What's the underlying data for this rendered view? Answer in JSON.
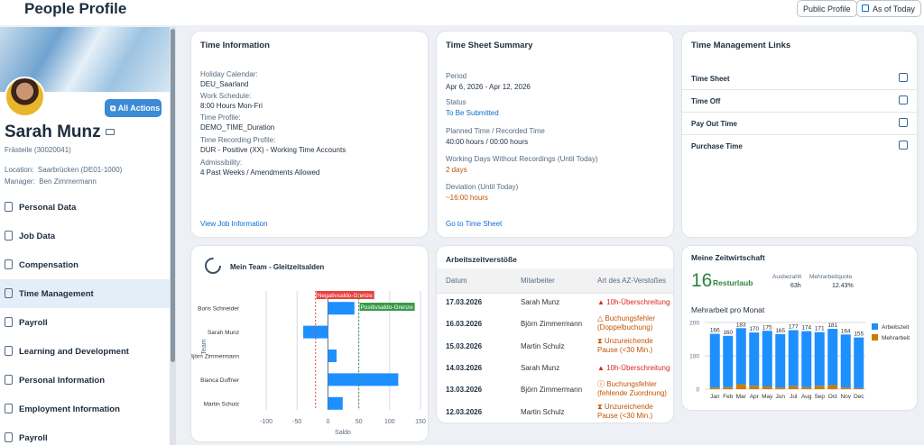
{
  "header": {
    "title": "People Profile",
    "public_profile": "Public Profile",
    "as_of_today": "As of Today"
  },
  "profile": {
    "name": "Sarah Munz",
    "position": "Frästeile (30020041)",
    "location_label": "Location:",
    "location": "Saarbrücken (DE01-1000)",
    "manager_label": "Manager:",
    "manager": "Ben Zimmermann",
    "all_actions": "All Actions"
  },
  "nav": [
    {
      "label": "Personal Data"
    },
    {
      "label": "Job Data"
    },
    {
      "label": "Compensation"
    },
    {
      "label": "Time Management",
      "selected": true
    },
    {
      "label": "Payroll"
    },
    {
      "label": "Learning and Development"
    },
    {
      "label": "Personal Information"
    },
    {
      "label": "Employment Information"
    },
    {
      "label": "Payroll"
    }
  ],
  "time_info": {
    "title": "Time Information",
    "fields": [
      {
        "label": "Holiday Calendar:",
        "value": "DEU_Saarland"
      },
      {
        "label": "Work Schedule:",
        "value": "8:00 Hours Mon-Fri"
      },
      {
        "label": "Time Profile:",
        "value": "DEMO_TIME_Duration"
      },
      {
        "label": "Time Recording Profile:",
        "value": "DUR - Positive (XX) - Working Time Accounts"
      },
      {
        "label": "Admissibility:",
        "value": "4 Past Weeks / Amendments Allowed"
      }
    ],
    "link": "View Job Information"
  },
  "timesheet": {
    "title": "Time Sheet Summary",
    "fields": [
      {
        "label": "Period",
        "value": "Apr 6, 2026 - Apr 12, 2026"
      },
      {
        "label": "Status",
        "value": "To Be Submitted"
      },
      {
        "label": "Planned Time / Recorded Time",
        "value": "40:00 hours / 00:00 hours"
      },
      {
        "label": "Working Days Without Recordings (Until Today)",
        "value": "2 days"
      },
      {
        "label": "Deviation (Until Today)",
        "value": "~16:00 hours"
      }
    ],
    "link": "Go to Time Sheet"
  },
  "links": {
    "title": "Time Management Links",
    "items": [
      "Time Sheet",
      "Time Off",
      "Pay Out Time",
      "Purchase Time"
    ]
  },
  "violations": {
    "title": "Arbeitszeitverstöße",
    "columns": [
      "Datum",
      "Mitarbeiter",
      "Art des AZ-Verstoßes"
    ],
    "rows": [
      {
        "date": "17.03.2026",
        "employee": "Sarah Munz",
        "type": "10h-Überschreitung",
        "type2": "",
        "icon": "alert-triangle-filled",
        "severity": "error"
      },
      {
        "date": "16.03.2026",
        "employee": "Björn Zimmermann",
        "type": "Buchungsfehler",
        "type2": "(Doppelbuchung)",
        "icon": "alert-triangle-outline",
        "severity": "warning"
      },
      {
        "date": "15.03.2026",
        "employee": "Martin Schulz",
        "type": "Unzureichende",
        "type2": "Pause (<30 Min.)",
        "icon": "hourglass",
        "severity": "warning"
      },
      {
        "date": "14.03.2026",
        "employee": "Sarah Munz",
        "type": "10h-Überschreitung",
        "type2": "",
        "icon": "alert-triangle-filled",
        "severity": "error"
      },
      {
        "date": "13.03.2026",
        "employee": "Björn Zimmermann",
        "type": "Buchungsfehler",
        "type2": "(fehlende Zuordnung)",
        "icon": "question-circle",
        "severity": "warning"
      },
      {
        "date": "12.03.2026",
        "employee": "Martin Schulz",
        "type": "Unzureichende",
        "type2": "Pause (<30 Min.)",
        "icon": "hourglass",
        "severity": "warning"
      }
    ]
  },
  "zeitwirtschaft": {
    "title": "Meine Zeitwirtschaft",
    "resturlaub_value": "16",
    "resturlaub_label": "Resturlaub",
    "ausbezahlt_label": "Ausbezahlt",
    "ausbezahlt": "63h",
    "quote_label": "Mehrarbeitquote",
    "quote": "12.43%"
  },
  "chart_data": [
    {
      "type": "bar",
      "orientation": "horizontal",
      "title": "Mein Team - Gleitzeitsalden",
      "xlabel": "Saldo",
      "ylabel": "Team",
      "xlim": [
        -100,
        150
      ],
      "xticks": [
        "-100",
        "-50",
        "0",
        "50",
        "100",
        "150"
      ],
      "categories": [
        "Boris Schneider",
        "Sarah Munz",
        "Björn Zimmermann",
        "Bianca Duffner",
        "Martin Schulz"
      ],
      "values": [
        43,
        -40,
        14,
        114,
        24
      ],
      "reference_lines": [
        {
          "label": "Negativsaldo-Grenze",
          "value": -20,
          "color": "#e8413e"
        },
        {
          "label": "Positivsaldo-Grenze",
          "value": 50,
          "color": "#3a9a4a"
        }
      ],
      "color": "#1e8fff",
      "grid": true
    },
    {
      "type": "bar",
      "stacked": true,
      "title": "Mehrarbeit pro Monat",
      "categories": [
        "Jan",
        "Feb",
        "Mar",
        "Apr",
        "May",
        "Jun",
        "Jul",
        "Aug",
        "Sep",
        "Oct",
        "Nov",
        "Dec"
      ],
      "series": [
        {
          "name": "Arbeitszeit",
          "values": [
            161,
            154,
            168,
            160,
            167,
            160,
            168,
            168,
            161,
            169,
            159,
            152
          ],
          "color": "#1e8fff"
        },
        {
          "name": "Mehrarbeit",
          "values": [
            5,
            6,
            15,
            10,
            8,
            5,
            9,
            6,
            10,
            12,
            5,
            3
          ],
          "color": "#d07b00"
        }
      ],
      "totals": [
        "166",
        "160",
        "183",
        "170",
        "175",
        "165",
        "177",
        "174",
        "171",
        "181",
        "164",
        "155"
      ],
      "ylim": [
        0,
        200
      ],
      "yticks": [
        "0",
        "100",
        "200"
      ],
      "legend": "right",
      "grid": true
    }
  ]
}
